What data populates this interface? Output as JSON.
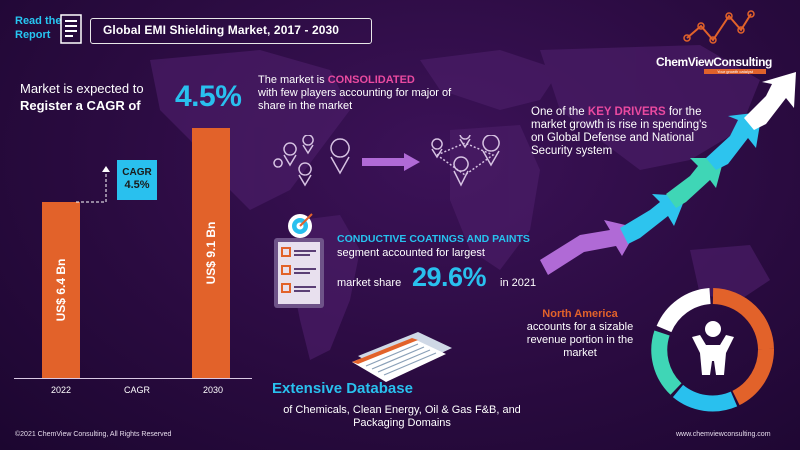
{
  "header": {
    "read_line1": "Read the",
    "read_line2": "Report",
    "title": "Global EMI  Shielding Market, 2017  - 2030"
  },
  "logo": {
    "name": "ChemViewConsulting",
    "tagline": "Your growth catalyst"
  },
  "cagr_section": {
    "line1": "Market is expected to",
    "line2": "Register a CAGR of",
    "value": "4.5%"
  },
  "chart_data": {
    "type": "bar",
    "categories": [
      "2022",
      "CAGR",
      "2030"
    ],
    "series": [
      {
        "values": [
          6.4,
          null,
          9.1
        ]
      }
    ],
    "data_labels": [
      "US$ 6.4 Bn",
      "US$ 9.1 Bn"
    ],
    "cagr_box": {
      "line1": "CAGR",
      "line2": "4.5%"
    }
  },
  "consolidated": {
    "pre": "The market is ",
    "highlight": "CONSOLIDATED",
    "post": "with few players accounting for major of share in the market"
  },
  "drivers": {
    "pre": "One of the ",
    "highlight": "KEY DRIVERS",
    "post": " for the market growth is rise in spending's on Global Defense and National Security system"
  },
  "conductive": {
    "title": "CONDUCTIVE COATINGS AND PAINTS",
    "line2": "segment accounted for largest",
    "line3": "market share",
    "value": "29.6%",
    "year": "in 2021"
  },
  "north_america": {
    "title": "North America",
    "text": "accounts for a sizable revenue portion in the market"
  },
  "database": {
    "title": "Extensive Database",
    "text": "of Chemicals, Clean Energy, Oil & Gas F&B, and Packaging Domains"
  },
  "footer": {
    "copyright": "©2021  ChemView  Consulting,  All Rights Reserved",
    "website": "www.chemviewconsulting.com"
  },
  "colors": {
    "accent_blue": "#29c0ee",
    "accent_orange": "#e2622a",
    "accent_pink": "#ea4aa0",
    "background": "#2a0b40"
  },
  "icons": [
    "report-icon",
    "location-pin-icon",
    "arrow-right-icon",
    "checklist-icon",
    "target-icon",
    "document-stack-icon",
    "person-icon",
    "growth-arrow-icon"
  ]
}
